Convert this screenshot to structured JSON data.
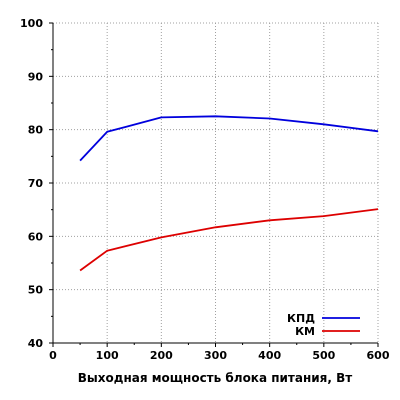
{
  "chart_data": {
    "type": "line",
    "xlabel": "Выходная мощность блока питания, Вт",
    "ylabel": "",
    "x_ticks": [
      0,
      100,
      200,
      300,
      400,
      500,
      600
    ],
    "y_ticks": [
      40,
      50,
      60,
      70,
      80,
      90,
      100
    ],
    "xlim": [
      0,
      600
    ],
    "ylim": [
      40,
      100
    ],
    "grid": true,
    "legend_position": "bottom-right",
    "series": [
      {
        "name": "КПД",
        "color": "#0000dd",
        "x": [
          50,
          100,
          200,
          300,
          400,
          500,
          600
        ],
        "y": [
          74.2,
          79.6,
          82.3,
          82.5,
          82.1,
          81.0,
          79.7
        ]
      },
      {
        "name": "КМ",
        "color": "#dd0000",
        "x": [
          50,
          100,
          200,
          300,
          400,
          500,
          600
        ],
        "y": [
          53.6,
          57.3,
          59.8,
          61.7,
          63.0,
          63.8,
          65.1
        ]
      }
    ]
  }
}
